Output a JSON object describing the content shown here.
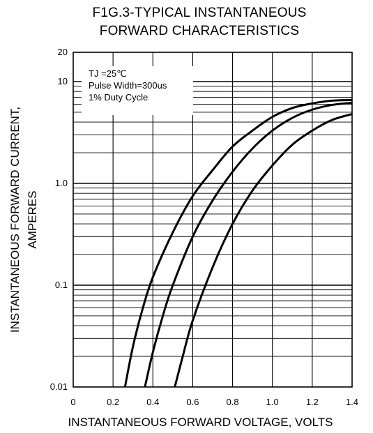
{
  "chart_data": {
    "type": "line",
    "title": "F1G.3-TYPICAL INSTANTANEOUS",
    "subtitle": "FORWARD CHARACTERISTICS",
    "xlabel": "INSTANTANEOUS FORWARD VOLTAGE, VOLTS",
    "ylabel": "INSTANTANEOUS FORWARD CURRENT,",
    "ylabel2": "AMPERES",
    "xlim": [
      0,
      1.4
    ],
    "ylim": [
      0.01,
      20
    ],
    "yscale": "log",
    "grid": true,
    "x_ticks": [
      "0",
      "0.2",
      "0.4",
      "0.6",
      "0.8",
      "1.0",
      "1.2",
      "1.4"
    ],
    "y_ticks": [
      "0.01",
      "0.1",
      "1.0",
      "10",
      "20"
    ],
    "legend": [
      "TJ =25℃",
      "Pulse Width=300us",
      "1% Duty Cycle"
    ],
    "legend_position": "top-left",
    "series": [
      {
        "x": [
          0.26,
          0.3,
          0.35,
          0.4,
          0.5,
          0.6,
          0.7,
          0.8,
          0.9,
          1.0,
          1.1,
          1.2,
          1.3,
          1.4
        ],
        "y": [
          0.01,
          0.025,
          0.06,
          0.12,
          0.33,
          0.75,
          1.35,
          2.3,
          3.3,
          4.5,
          5.5,
          6.1,
          6.5,
          6.6
        ]
      },
      {
        "x": [
          0.36,
          0.4,
          0.45,
          0.5,
          0.6,
          0.7,
          0.8,
          0.9,
          1.0,
          1.1,
          1.2,
          1.3,
          1.4
        ],
        "y": [
          0.01,
          0.022,
          0.05,
          0.1,
          0.3,
          0.68,
          1.3,
          2.2,
          3.3,
          4.4,
          5.3,
          5.9,
          6.2
        ]
      },
      {
        "x": [
          0.51,
          0.55,
          0.6,
          0.7,
          0.8,
          0.9,
          1.0,
          1.1,
          1.2,
          1.3,
          1.4
        ],
        "y": [
          0.01,
          0.02,
          0.045,
          0.15,
          0.4,
          0.85,
          1.5,
          2.4,
          3.3,
          4.2,
          4.8
        ]
      }
    ]
  }
}
